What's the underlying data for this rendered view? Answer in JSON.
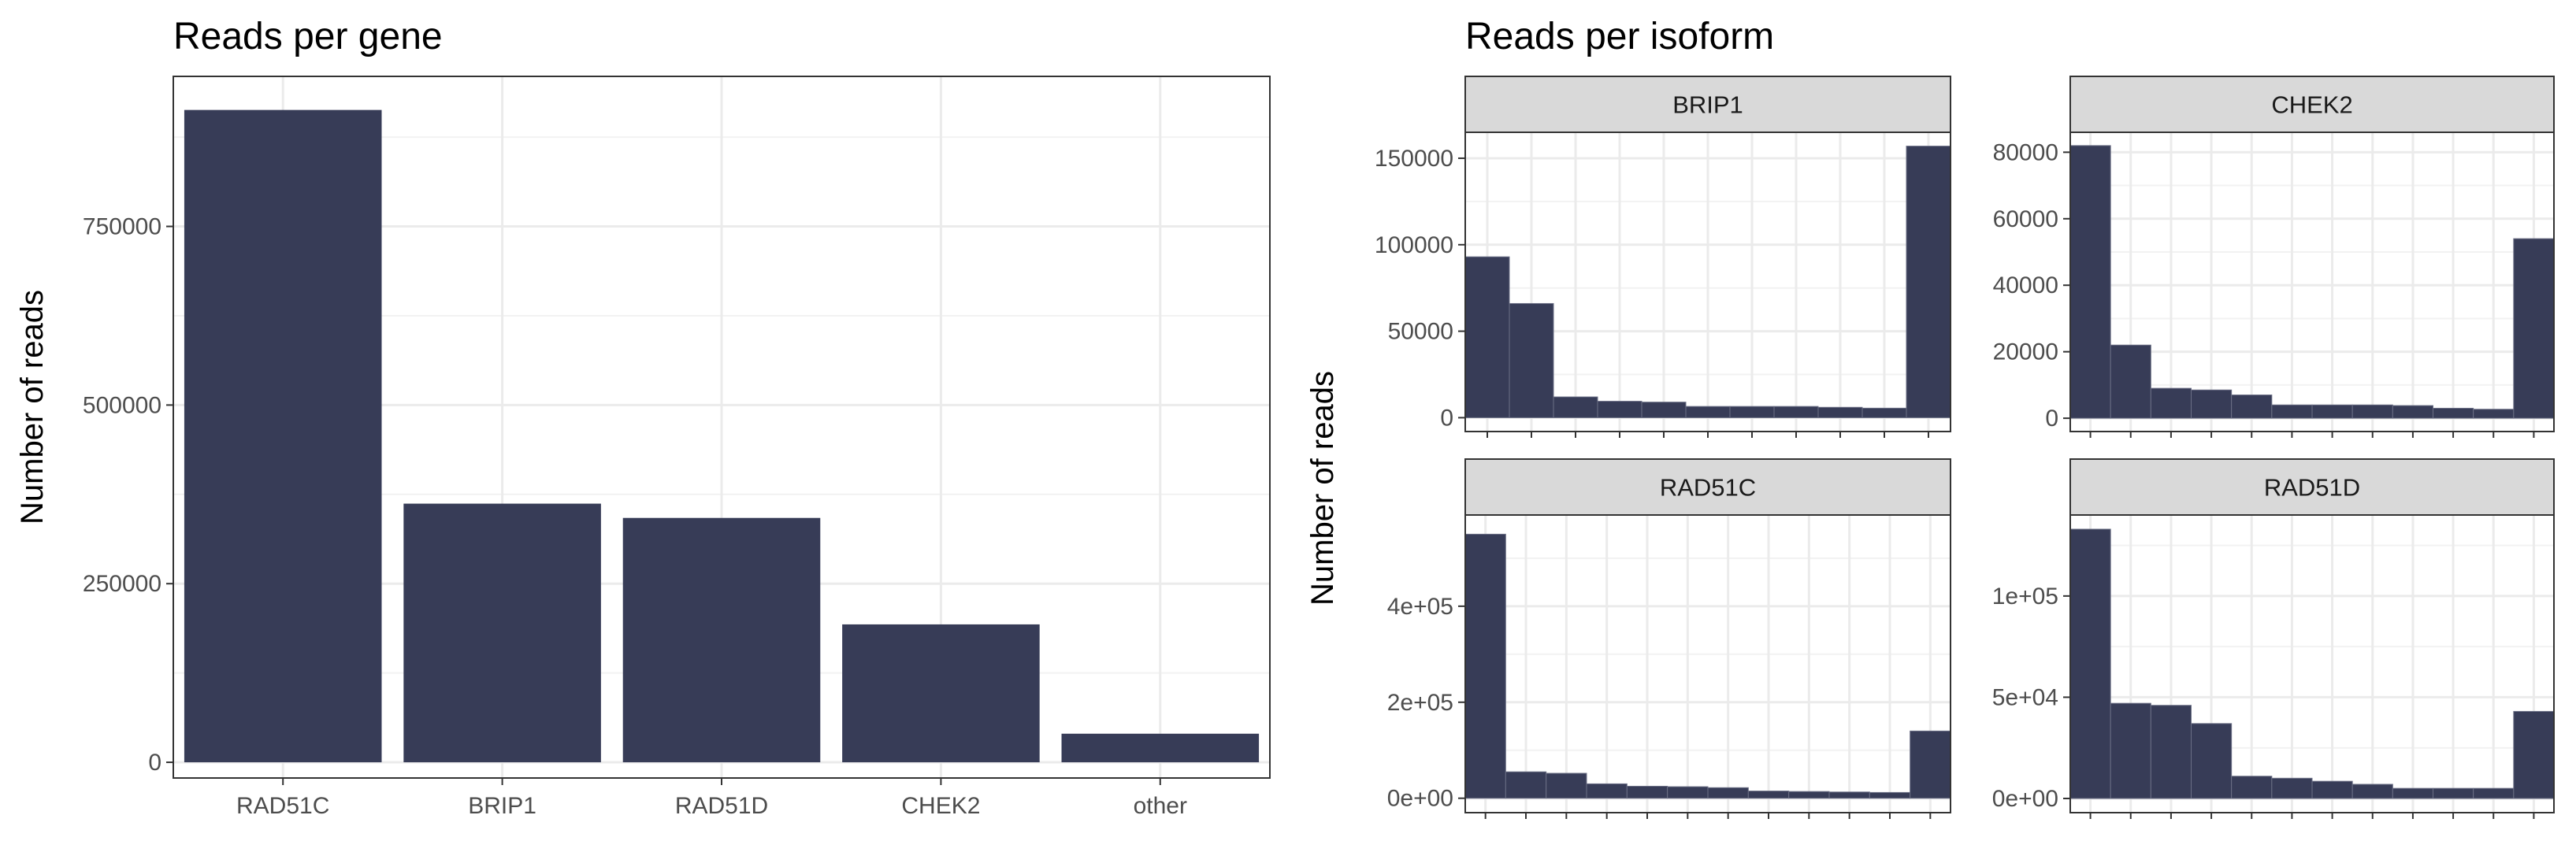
{
  "chart_data": [
    {
      "type": "bar",
      "title": "Reads per gene",
      "xlabel": "",
      "ylabel": "Number of reads",
      "categories": [
        "RAD51C",
        "BRIP1",
        "RAD51D",
        "CHEK2",
        "other"
      ],
      "values": [
        913000,
        362000,
        342000,
        193000,
        40000
      ],
      "ylim": [
        -22000,
        960000
      ],
      "yticks": [
        0,
        250000,
        500000,
        750000
      ],
      "ytick_labels": [
        "0",
        "250000",
        "500000",
        "750000"
      ],
      "bar_color": "#373c57",
      "grid": true
    },
    {
      "type": "bar",
      "title": "Reads per isoform",
      "xlabel": "",
      "ylabel": "Number of reads",
      "facet_layout": "2x2",
      "bar_color": "#373c57",
      "grid": true,
      "facets": [
        {
          "name": "BRIP1",
          "values": [
            93000,
            66000,
            12000,
            9500,
            9000,
            6500,
            6500,
            6500,
            6000,
            5500,
            157000
          ],
          "ylim": [
            -8000,
            165000
          ],
          "yticks": [
            0,
            50000,
            100000,
            150000
          ],
          "ytick_labels": [
            "0",
            "50000",
            "100000",
            "150000"
          ]
        },
        {
          "name": "CHEK2",
          "values": [
            82000,
            22000,
            9000,
            8500,
            7000,
            4000,
            4000,
            4000,
            3800,
            3000,
            2700,
            54000
          ],
          "ylim": [
            -4000,
            86000
          ],
          "yticks": [
            0,
            20000,
            40000,
            60000,
            80000
          ],
          "ytick_labels": [
            "0",
            "20000",
            "40000",
            "60000",
            "80000"
          ]
        },
        {
          "name": "RAD51C",
          "values": [
            550000,
            55000,
            52000,
            30000,
            25000,
            24000,
            22000,
            15000,
            14000,
            13000,
            12000,
            140000
          ],
          "ylim": [
            -30000,
            590000
          ],
          "yticks": [
            0,
            200000,
            400000
          ],
          "ytick_labels": [
            "0e+00",
            "2e+05",
            "4e+05"
          ]
        },
        {
          "name": "RAD51D",
          "values": [
            133000,
            47000,
            46000,
            37000,
            11000,
            10000,
            8500,
            7000,
            5000,
            5000,
            5000,
            43000
          ],
          "ylim": [
            -7000,
            140000
          ],
          "yticks": [
            0,
            50000,
            100000
          ],
          "ytick_labels": [
            "0e+00",
            "5e+04",
            "1e+05"
          ]
        }
      ]
    }
  ]
}
